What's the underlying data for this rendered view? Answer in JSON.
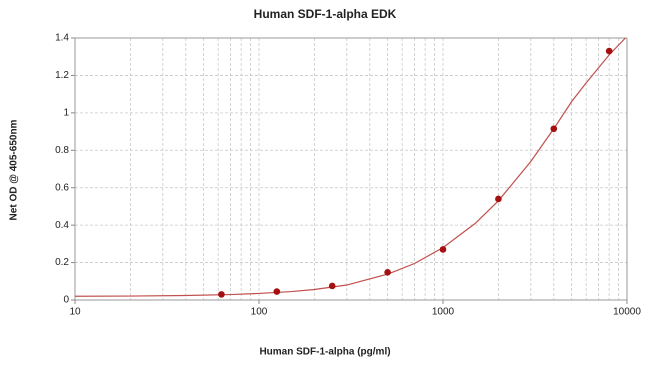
{
  "chart_data": {
    "type": "scatter",
    "title": "Human SDF-1-alpha EDK",
    "x_label": "Human SDF-1-alpha (pg/ml)",
    "y_label": "Net OD @ 405-650nm",
    "x_scale": "log",
    "grid": true,
    "xlim": [
      10,
      10000
    ],
    "xticks": [
      10,
      100,
      1000,
      10000
    ],
    "ylim": [
      0,
      1.4
    ],
    "yticks": [
      0,
      0.2,
      0.4,
      0.6,
      0.8,
      1,
      1.2,
      1.4
    ],
    "series": [
      {
        "color": "#a50f0f",
        "x": [
          62.5,
          125,
          250,
          500,
          1000,
          2000,
          4000,
          8000
        ],
        "values": [
          0.03,
          0.045,
          0.075,
          0.148,
          0.27,
          0.54,
          0.915,
          1.33
        ]
      }
    ],
    "curve": {
      "color": "#c0504d",
      "x": [
        10,
        20,
        40,
        70,
        100,
        150,
        200,
        300,
        500,
        700,
        1000,
        1500,
        2000,
        3000,
        4000,
        5000,
        6000,
        8000,
        9800
      ],
      "values": [
        0.02,
        0.021,
        0.024,
        0.029,
        0.035,
        0.045,
        0.056,
        0.08,
        0.138,
        0.195,
        0.28,
        0.41,
        0.53,
        0.74,
        0.915,
        1.06,
        1.16,
        1.31,
        1.4
      ]
    }
  }
}
